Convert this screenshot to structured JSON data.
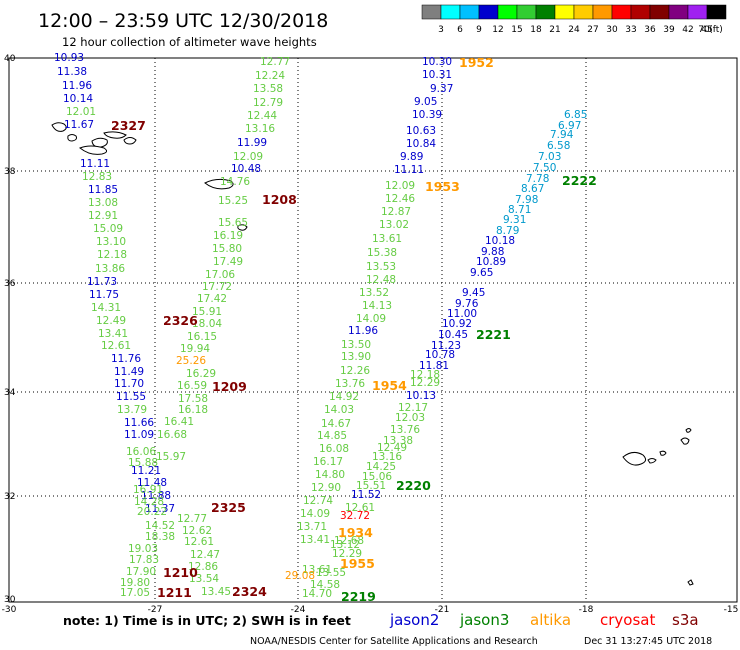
{
  "title": "12:00 – 23:59 UTC 12/30/2018",
  "subtitle": "12 hour collection of altimeter wave heights",
  "colorbar": {
    "colors": [
      "#7f7f7f",
      "#00ffff",
      "#00c0ff",
      "#0000cd",
      "#00ff00",
      "#32cd32",
      "#008000",
      "#ffff00",
      "#ffcc00",
      "#ff9900",
      "#ff0000",
      "#b00000",
      "#800000",
      "#800080",
      "#a020f0",
      "#000000"
    ],
    "labels": [
      "3",
      "6",
      "9",
      "12",
      "15",
      "18",
      "21",
      "24",
      "27",
      "30",
      "33",
      "36",
      "39",
      "42",
      "45",
      "70"
    ],
    "unit": "(ft)"
  },
  "axes": {
    "lat_labels": [
      "40",
      "38",
      "36",
      "34",
      "32",
      "30"
    ],
    "lon_labels": [
      "-30",
      "-27",
      "-24",
      "-21",
      "-18",
      "-15"
    ]
  },
  "note": "note: 1) Time is in UTC; 2) SWH is in feet",
  "legend": [
    {
      "name": "jason2",
      "color": "#0000cd"
    },
    {
      "name": "jason3",
      "color": "#008000"
    },
    {
      "name": "altika",
      "color": "#ff9900"
    },
    {
      "name": "cryosat",
      "color": "#ff0000"
    },
    {
      "name": "s3a",
      "color": "#800000"
    }
  ],
  "footer_left": "NOAA/NESDIS Center for Satellite Applications and Research",
  "footer_right": "Dec 31 13:27:45 UTC 2018",
  "colors": {
    "blue": "#0000cd",
    "ltgreen": "#66cc44",
    "green": "#008000",
    "orange": "#ff9900",
    "red": "#ff0000",
    "maroon": "#800000",
    "cyan": "#0099cc"
  },
  "tracks": [
    {
      "color": "blue",
      "values": [
        "10.93",
        "11.38",
        "11.96",
        "10.14"
      ]
    },
    {
      "color": "ltgreen",
      "values": [
        "12.01"
      ]
    },
    {
      "color": "blue",
      "values": [
        "11.67"
      ]
    },
    {
      "color": "blue",
      "values": [
        "11.11"
      ]
    },
    {
      "color": "ltgreen",
      "values": [
        "12.83",
        "13.08",
        "12.91",
        "15.09",
        "13.10",
        "12.18",
        "13.86"
      ]
    },
    {
      "color": "blue",
      "values": [
        "11.85"
      ]
    },
    {
      "color": "blue",
      "values": [
        "11.73",
        "11.75"
      ]
    },
    {
      "color": "ltgreen",
      "values": [
        "14.31",
        "12.49",
        "13.41",
        "12.61"
      ]
    },
    {
      "color": "blue",
      "values": [
        "11.76",
        "11.49",
        "11.70",
        "11.55"
      ]
    },
    {
      "color": "ltgreen",
      "values": [
        "13.79"
      ]
    },
    {
      "color": "blue",
      "values": [
        "11.66",
        "11.09"
      ]
    },
    {
      "color": "ltgreen",
      "values": [
        "16.06",
        "15.88"
      ]
    },
    {
      "color": "blue",
      "values": [
        "11.21",
        "11.48",
        "11.88",
        "11.37"
      ]
    },
    {
      "color": "ltgreen",
      "values": [
        "16.91",
        "14.28",
        "20.22",
        "14.52",
        "18.38",
        "19.03",
        "17.83",
        "17.90",
        "19.80",
        "17.05"
      ]
    },
    {
      "color": "ltgreen",
      "values": [
        "12.77",
        "12.24",
        "13.58",
        "12.79",
        "12.44",
        "13.16"
      ]
    },
    {
      "color": "blue",
      "values": [
        "11.99"
      ]
    },
    {
      "color": "ltgreen",
      "values": [
        "12.09"
      ]
    },
    {
      "color": "blue",
      "values": [
        "10.48"
      ]
    },
    {
      "color": "ltgreen",
      "values": [
        "14.76",
        "15.25",
        "15.65",
        "16.19",
        "15.80",
        "17.49",
        "17.06",
        "17.72",
        "17.42",
        "15.91",
        "18.04",
        "16.15",
        "19.94"
      ]
    },
    {
      "color": "orange",
      "values": [
        "25.26"
      ]
    },
    {
      "color": "ltgreen",
      "values": [
        "16.29",
        "16.59",
        "17.58",
        "16.18",
        "16.41",
        "16.68",
        "15.97",
        "12.77",
        "12.62",
        "12.61",
        "12.47",
        "12.86",
        "13.54",
        "13.45"
      ]
    },
    {
      "color": "blue",
      "values": [
        "10.30",
        "10.31",
        "9.37",
        "9.05",
        "10.39",
        "10.63",
        "10.84",
        "9.89",
        "11.11"
      ]
    },
    {
      "color": "ltgreen",
      "values": [
        "12.09",
        "12.46",
        "12.87",
        "13.02",
        "13.61",
        "15.38",
        "13.53",
        "12.48",
        "13.52",
        "14.13",
        "14.09"
      ]
    },
    {
      "color": "blue",
      "values": [
        "11.96"
      ]
    },
    {
      "color": "ltgreen",
      "values": [
        "13.50",
        "13.90",
        "12.26",
        "13.76",
        "14.92",
        "14.03",
        "14.67",
        "14.85",
        "16.08",
        "16.17",
        "14.80",
        "12.90",
        "12.74",
        "14.09",
        "13.71",
        "13.41",
        "13.61",
        "17.83"
      ]
    },
    {
      "color": "orange",
      "values": [
        "29.08"
      ]
    },
    {
      "color": "ltgreen",
      "values": [
        "13.55",
        "14.58",
        "14.70",
        "14.50"
      ]
    },
    {
      "color": "cyan",
      "values": [
        "6.85",
        "6.97",
        "7.94",
        "6.58",
        "7.03",
        "7.50",
        "7.78",
        "8.67",
        "7.98",
        "8.71",
        "9.31",
        "8.79"
      ]
    },
    {
      "color": "blue",
      "values": [
        "10.18",
        "9.88",
        "10.89",
        "9.65",
        "9.45",
        "9.76",
        "11.00",
        "10.92",
        "10.45",
        "11.23",
        "10.78",
        "11.81"
      ]
    },
    {
      "color": "ltgreen",
      "values": [
        "12.29",
        "12.18"
      ]
    },
    {
      "color": "blue",
      "values": [
        "10.13"
      ]
    },
    {
      "color": "ltgreen",
      "values": [
        "12.17",
        "12.03",
        "13.76",
        "13.38",
        "12.49",
        "13.16",
        "14.25",
        "15.06",
        "15.51"
      ]
    },
    {
      "color": "blue",
      "values": [
        "11.52"
      ]
    },
    {
      "color": "ltgreen",
      "values": [
        "12.61"
      ]
    },
    {
      "color": "red",
      "values": [
        "32.72"
      ]
    },
    {
      "color": "ltgreen",
      "values": [
        "12.68",
        "13.12",
        "12.29"
      ]
    }
  ],
  "time_labels": [
    {
      "text": "1952",
      "color": "orange"
    },
    {
      "text": "2327",
      "color": "maroon"
    },
    {
      "text": "1208",
      "color": "maroon"
    },
    {
      "text": "1953",
      "color": "orange"
    },
    {
      "text": "2222",
      "color": "green"
    },
    {
      "text": "2326",
      "color": "maroon"
    },
    {
      "text": "2221",
      "color": "green"
    },
    {
      "text": "1209",
      "color": "maroon"
    },
    {
      "text": "1954",
      "color": "orange"
    },
    {
      "text": "2220",
      "color": "green"
    },
    {
      "text": "2325",
      "color": "maroon"
    },
    {
      "text": "1934",
      "color": "orange"
    },
    {
      "text": "1955",
      "color": "orange"
    },
    {
      "text": "1210",
      "color": "maroon"
    },
    {
      "text": "1211",
      "color": "maroon"
    },
    {
      "text": "2324",
      "color": "maroon"
    },
    {
      "text": "2219",
      "color": "green"
    }
  ]
}
